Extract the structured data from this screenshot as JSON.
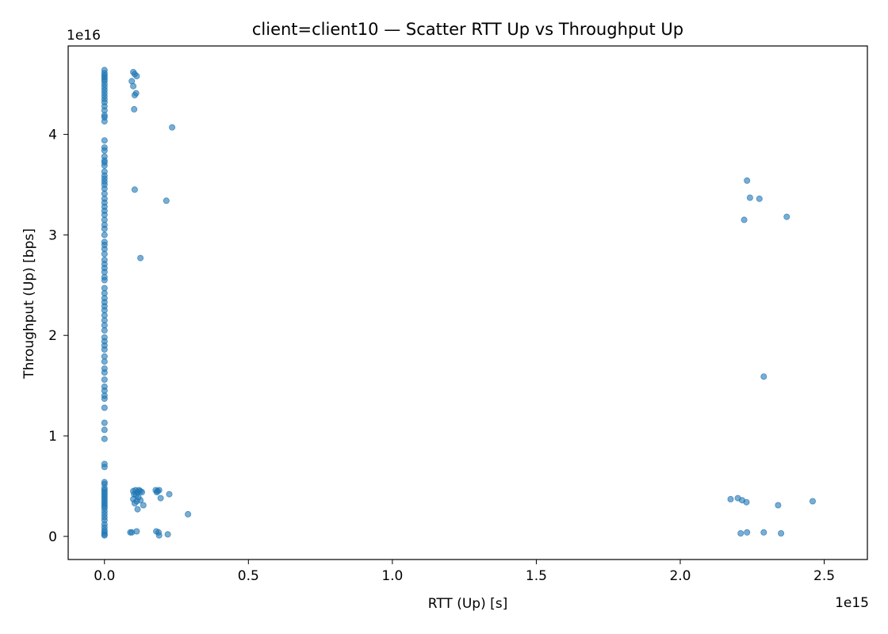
{
  "chart_data": {
    "type": "scatter",
    "title": "client=client10 — Scatter RTT Up vs Throughput Up",
    "xlabel": "RTT (Up) [s]",
    "ylabel": "Throughput (Up) [bps]",
    "x_offset_label": "1e15",
    "y_offset_label": "1e16",
    "xlim": [
      -0.126,
      2.65
    ],
    "ylim": [
      -0.23,
      4.88
    ],
    "x_scale_note": "values in units of 1e15",
    "y_scale_note": "values in units of 1e16",
    "xticks": [
      0.0,
      0.5,
      1.0,
      1.5,
      2.0,
      2.5
    ],
    "xtick_labels": [
      "0.0",
      "0.5",
      "1.0",
      "1.5",
      "2.0",
      "2.5"
    ],
    "yticks": [
      0,
      1,
      2,
      3,
      4
    ],
    "ytick_labels": [
      "0",
      "1",
      "2",
      "3",
      "4"
    ],
    "grid": false,
    "marker_color": "#1f77b4",
    "marker_opacity": 0.6,
    "series": [
      {
        "points": [
          [
            0.0,
            4.64
          ],
          [
            0.0,
            4.61
          ],
          [
            0.0,
            4.59
          ],
          [
            0.0,
            4.57
          ],
          [
            0.0,
            4.55
          ],
          [
            0.0,
            4.53
          ],
          [
            0.0,
            4.5
          ],
          [
            0.0,
            4.47
          ],
          [
            0.0,
            4.44
          ],
          [
            0.0,
            4.41
          ],
          [
            0.0,
            4.38
          ],
          [
            0.0,
            4.35
          ],
          [
            0.0,
            4.32
          ],
          [
            0.0,
            4.28
          ],
          [
            0.0,
            4.24
          ],
          [
            0.0,
            4.19
          ],
          [
            0.0,
            4.17
          ],
          [
            0.0,
            4.13
          ],
          [
            0.0,
            3.94
          ],
          [
            0.0,
            3.87
          ],
          [
            0.0,
            3.84
          ],
          [
            0.0,
            3.78
          ],
          [
            0.0,
            3.74
          ],
          [
            0.0,
            3.72
          ],
          [
            0.0,
            3.69
          ],
          [
            0.0,
            3.63
          ],
          [
            0.0,
            3.59
          ],
          [
            0.0,
            3.56
          ],
          [
            0.0,
            3.53
          ],
          [
            0.0,
            3.5
          ],
          [
            0.0,
            3.46
          ],
          [
            0.0,
            3.41
          ],
          [
            0.0,
            3.36
          ],
          [
            0.0,
            3.32
          ],
          [
            0.0,
            3.28
          ],
          [
            0.0,
            3.24
          ],
          [
            0.0,
            3.2
          ],
          [
            0.0,
            3.15
          ],
          [
            0.0,
            3.1
          ],
          [
            0.0,
            3.06
          ],
          [
            0.0,
            3.0
          ],
          [
            0.0,
            2.93
          ],
          [
            0.0,
            2.9
          ],
          [
            0.0,
            2.86
          ],
          [
            0.0,
            2.81
          ],
          [
            0.0,
            2.75
          ],
          [
            0.0,
            2.71
          ],
          [
            0.0,
            2.67
          ],
          [
            0.0,
            2.63
          ],
          [
            0.0,
            2.58
          ],
          [
            0.0,
            2.55
          ],
          [
            0.0,
            2.47
          ],
          [
            0.0,
            2.42
          ],
          [
            0.0,
            2.37
          ],
          [
            0.0,
            2.33
          ],
          [
            0.0,
            2.29
          ],
          [
            0.0,
            2.25
          ],
          [
            0.0,
            2.2
          ],
          [
            0.0,
            2.15
          ],
          [
            0.0,
            2.1
          ],
          [
            0.0,
            2.05
          ],
          [
            0.0,
            1.98
          ],
          [
            0.0,
            1.94
          ],
          [
            0.0,
            1.9
          ],
          [
            0.0,
            1.86
          ],
          [
            0.0,
            1.79
          ],
          [
            0.0,
            1.74
          ],
          [
            0.0,
            1.67
          ],
          [
            0.0,
            1.63
          ],
          [
            0.0,
            1.56
          ],
          [
            0.0,
            1.49
          ],
          [
            0.0,
            1.45
          ],
          [
            0.0,
            1.4
          ],
          [
            0.0,
            1.37
          ],
          [
            0.0,
            1.28
          ],
          [
            0.0,
            1.13
          ],
          [
            0.0,
            1.06
          ],
          [
            0.0,
            0.97
          ],
          [
            0.0,
            0.72
          ],
          [
            0.0,
            0.69
          ],
          [
            0.0,
            0.54
          ],
          [
            0.0,
            0.52
          ],
          [
            0.0,
            0.48
          ],
          [
            0.0,
            0.46
          ],
          [
            0.0,
            0.44
          ],
          [
            0.0,
            0.42
          ],
          [
            0.0,
            0.4
          ],
          [
            0.0,
            0.38
          ],
          [
            0.0,
            0.36
          ],
          [
            0.0,
            0.34
          ],
          [
            0.0,
            0.32
          ],
          [
            0.0,
            0.3
          ],
          [
            0.0,
            0.28
          ],
          [
            0.0,
            0.25
          ],
          [
            0.0,
            0.22
          ],
          [
            0.0,
            0.19
          ],
          [
            0.0,
            0.16
          ],
          [
            0.0,
            0.12
          ],
          [
            0.0,
            0.09
          ],
          [
            0.0,
            0.06
          ],
          [
            0.0,
            0.04
          ],
          [
            0.0,
            0.02
          ],
          [
            0.0,
            0.01
          ],
          [
            0.1,
            4.62
          ],
          [
            0.105,
            4.6
          ],
          [
            0.112,
            4.58
          ],
          [
            0.095,
            4.53
          ],
          [
            0.1,
            4.48
          ],
          [
            0.11,
            4.41
          ],
          [
            0.105,
            4.39
          ],
          [
            0.103,
            4.25
          ],
          [
            0.235,
            4.07
          ],
          [
            0.105,
            3.45
          ],
          [
            0.215,
            3.34
          ],
          [
            0.125,
            2.77
          ],
          [
            0.1,
            0.45
          ],
          [
            0.108,
            0.46
          ],
          [
            0.115,
            0.44
          ],
          [
            0.12,
            0.46
          ],
          [
            0.125,
            0.45
          ],
          [
            0.13,
            0.44
          ],
          [
            0.103,
            0.42
          ],
          [
            0.11,
            0.41
          ],
          [
            0.118,
            0.39
          ],
          [
            0.1,
            0.37
          ],
          [
            0.112,
            0.35
          ],
          [
            0.105,
            0.33
          ],
          [
            0.125,
            0.36
          ],
          [
            0.135,
            0.31
          ],
          [
            0.115,
            0.27
          ],
          [
            0.178,
            0.46
          ],
          [
            0.185,
            0.45
          ],
          [
            0.19,
            0.46
          ],
          [
            0.182,
            0.44
          ],
          [
            0.195,
            0.38
          ],
          [
            0.225,
            0.42
          ],
          [
            0.29,
            0.22
          ],
          [
            0.09,
            0.04
          ],
          [
            0.095,
            0.04
          ],
          [
            0.112,
            0.05
          ],
          [
            0.18,
            0.05
          ],
          [
            0.188,
            0.04
          ],
          [
            0.19,
            0.01
          ],
          [
            0.22,
            0.02
          ],
          [
            2.232,
            3.54
          ],
          [
            2.242,
            3.37
          ],
          [
            2.275,
            3.36
          ],
          [
            2.222,
            3.15
          ],
          [
            2.37,
            3.18
          ],
          [
            2.29,
            1.59
          ],
          [
            2.175,
            0.37
          ],
          [
            2.2,
            0.38
          ],
          [
            2.215,
            0.36
          ],
          [
            2.23,
            0.34
          ],
          [
            2.34,
            0.31
          ],
          [
            2.46,
            0.35
          ],
          [
            2.21,
            0.03
          ],
          [
            2.232,
            0.04
          ],
          [
            2.29,
            0.04
          ],
          [
            2.35,
            0.03
          ]
        ]
      }
    ]
  }
}
